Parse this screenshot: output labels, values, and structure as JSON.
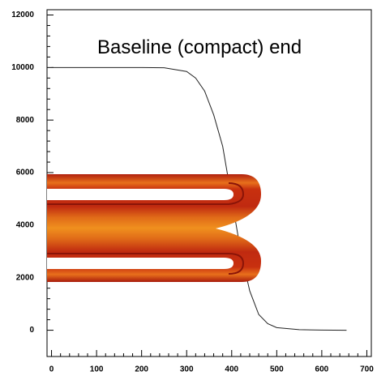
{
  "chart_data": {
    "type": "line",
    "annotation": "Baseline (compact) end",
    "x": [
      0,
      200,
      250,
      300,
      320,
      340,
      360,
      380,
      400,
      420,
      440,
      460,
      480,
      500,
      550,
      600,
      655
    ],
    "series": [
      {
        "color": "#222222",
        "values": [
          10000,
          10000,
          9990,
          9850,
          9600,
          9100,
          8200,
          7000,
          5000,
          3000,
          1500,
          600,
          250,
          100,
          20,
          5,
          0
        ]
      }
    ],
    "xlim": [
      -10,
      710
    ],
    "xticks": [
      0,
      100,
      200,
      300,
      400,
      500,
      600,
      700
    ],
    "ylim": [
      -1000,
      12200
    ],
    "yticks": [
      0,
      2000,
      4000,
      6000,
      8000,
      10000,
      12000
    ]
  }
}
